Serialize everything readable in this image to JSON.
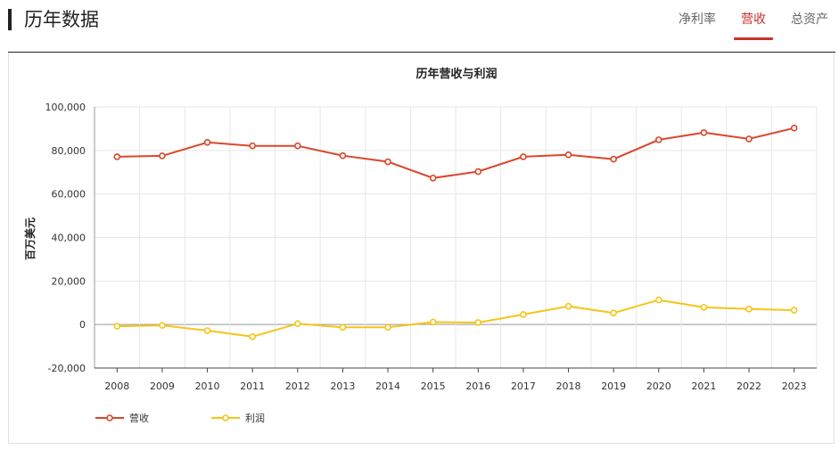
{
  "header": {
    "title": "历年数据",
    "tabs": [
      {
        "label": "净利率",
        "active": false
      },
      {
        "label": "营收",
        "active": true
      },
      {
        "label": "总资产",
        "active": false
      }
    ]
  },
  "chart_data": {
    "type": "line",
    "title": "历年营收与利润",
    "xlabel": "",
    "ylabel": "百万美元",
    "categories": [
      "2008",
      "2009",
      "2010",
      "2011",
      "2012",
      "2013",
      "2014",
      "2015",
      "2016",
      "2017",
      "2018",
      "2019",
      "2020",
      "2021",
      "2022",
      "2023"
    ],
    "ylim": [
      -20000,
      100000
    ],
    "yticks": [
      -20000,
      0,
      20000,
      40000,
      60000,
      80000,
      100000
    ],
    "ytick_labels": [
      "-20,000",
      "0",
      "20,000",
      "40,000",
      "60,000",
      "80,000",
      "100,000"
    ],
    "grid": true,
    "legend_position": "bottom-left",
    "series": [
      {
        "name": "营收",
        "color": "#d9472b",
        "values": [
          77100,
          77500,
          83700,
          82100,
          82100,
          77600,
          74800,
          67300,
          70300,
          77100,
          78000,
          76000,
          84900,
          88200,
          85300,
          90300
        ]
      },
      {
        "name": "利润",
        "color": "#f5c518",
        "values": [
          -800,
          -400,
          -2800,
          -5600,
          400,
          -1300,
          -1300,
          1100,
          900,
          4600,
          8400,
          5300,
          11300,
          7900,
          7100,
          6600
        ]
      }
    ]
  }
}
